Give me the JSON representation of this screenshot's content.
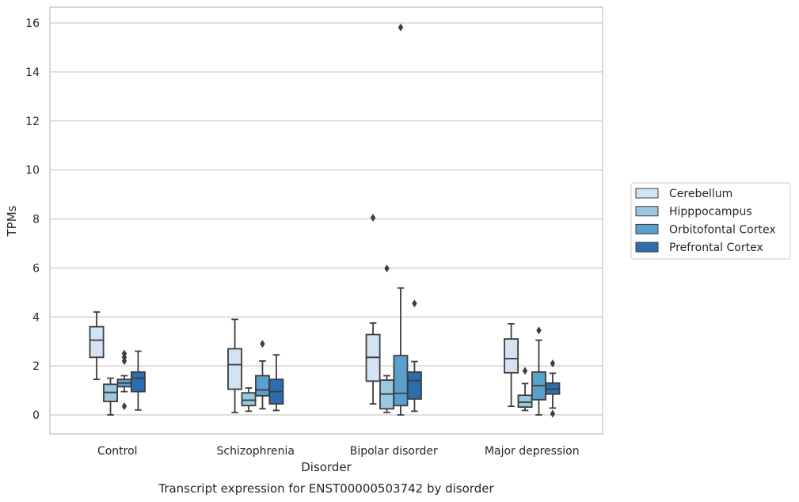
{
  "chart_data": {
    "type": "box",
    "title": "",
    "caption": "Transcript expression for ENST00000503742 by disorder",
    "xlabel": "Disorder",
    "ylabel": "TPMs",
    "ylim": [
      -0.75,
      16.6
    ],
    "yticks": [
      0,
      2,
      4,
      6,
      8,
      10,
      12,
      14,
      16
    ],
    "grid": "horizontal",
    "legend_position": "right",
    "categories": [
      "Control",
      "Schizophrenia",
      "Bipolar disorder",
      "Major depression"
    ],
    "series": [
      {
        "name": "Cerebellum",
        "color": "#d2e3f3",
        "boxes": [
          {
            "whisker_low": 1.45,
            "q1": 2.35,
            "median": 3.05,
            "q3": 3.6,
            "whisker_high": 4.2,
            "outliers": []
          },
          {
            "whisker_low": 0.1,
            "q1": 1.05,
            "median": 2.05,
            "q3": 2.7,
            "whisker_high": 3.9,
            "outliers": []
          },
          {
            "whisker_low": 0.45,
            "q1": 1.38,
            "median": 2.35,
            "q3": 3.28,
            "whisker_high": 3.75,
            "outliers": [
              8.05
            ]
          },
          {
            "whisker_low": 0.35,
            "q1": 1.72,
            "median": 2.3,
            "q3": 3.1,
            "whisker_high": 3.72,
            "outliers": []
          }
        ]
      },
      {
        "name": "Hipppocampus",
        "color": "#9ac8e0",
        "boxes": [
          {
            "whisker_low": 0.0,
            "q1": 0.55,
            "median": 0.92,
            "q3": 1.25,
            "whisker_high": 1.5,
            "outliers": []
          },
          {
            "whisker_low": 0.15,
            "q1": 0.38,
            "median": 0.6,
            "q3": 0.9,
            "whisker_high": 1.1,
            "outliers": []
          },
          {
            "whisker_low": 0.1,
            "q1": 0.25,
            "median": 0.85,
            "q3": 1.42,
            "whisker_high": 1.6,
            "outliers": [
              5.98
            ]
          },
          {
            "whisker_low": 0.18,
            "q1": 0.32,
            "median": 0.52,
            "q3": 0.8,
            "whisker_high": 1.28,
            "outliers": [
              1.8
            ]
          }
        ]
      },
      {
        "name": "Orbitofontal Cortex",
        "color": "#5aa0cd",
        "boxes": [
          {
            "whisker_low": 0.95,
            "q1": 1.15,
            "median": 1.3,
            "q3": 1.45,
            "whisker_high": 1.6,
            "outliers": [
              0.35,
              2.2,
              2.35,
              2.5
            ]
          },
          {
            "whisker_low": 0.25,
            "q1": 0.78,
            "median": 1.02,
            "q3": 1.6,
            "whisker_high": 2.2,
            "outliers": [
              2.9
            ]
          },
          {
            "whisker_low": 0.0,
            "q1": 0.38,
            "median": 0.88,
            "q3": 2.42,
            "whisker_high": 5.18,
            "outliers": [
              15.82
            ]
          },
          {
            "whisker_low": 0.0,
            "q1": 0.62,
            "median": 1.2,
            "q3": 1.75,
            "whisker_high": 3.05,
            "outliers": [
              3.45
            ]
          }
        ]
      },
      {
        "name": "Prefrontal Cortex",
        "color": "#2a6eb0",
        "boxes": [
          {
            "whisker_low": 0.2,
            "q1": 0.95,
            "median": 1.5,
            "q3": 1.75,
            "whisker_high": 2.6,
            "outliers": []
          },
          {
            "whisker_low": 0.18,
            "q1": 0.45,
            "median": 0.95,
            "q3": 1.45,
            "whisker_high": 2.45,
            "outliers": []
          },
          {
            "whisker_low": 0.15,
            "q1": 0.65,
            "median": 1.4,
            "q3": 1.75,
            "whisker_high": 2.18,
            "outliers": [
              4.55
            ]
          },
          {
            "whisker_low": 0.28,
            "q1": 0.85,
            "median": 1.05,
            "q3": 1.3,
            "whisker_high": 1.7,
            "outliers": [
              0.05,
              2.1
            ]
          }
        ]
      }
    ]
  }
}
